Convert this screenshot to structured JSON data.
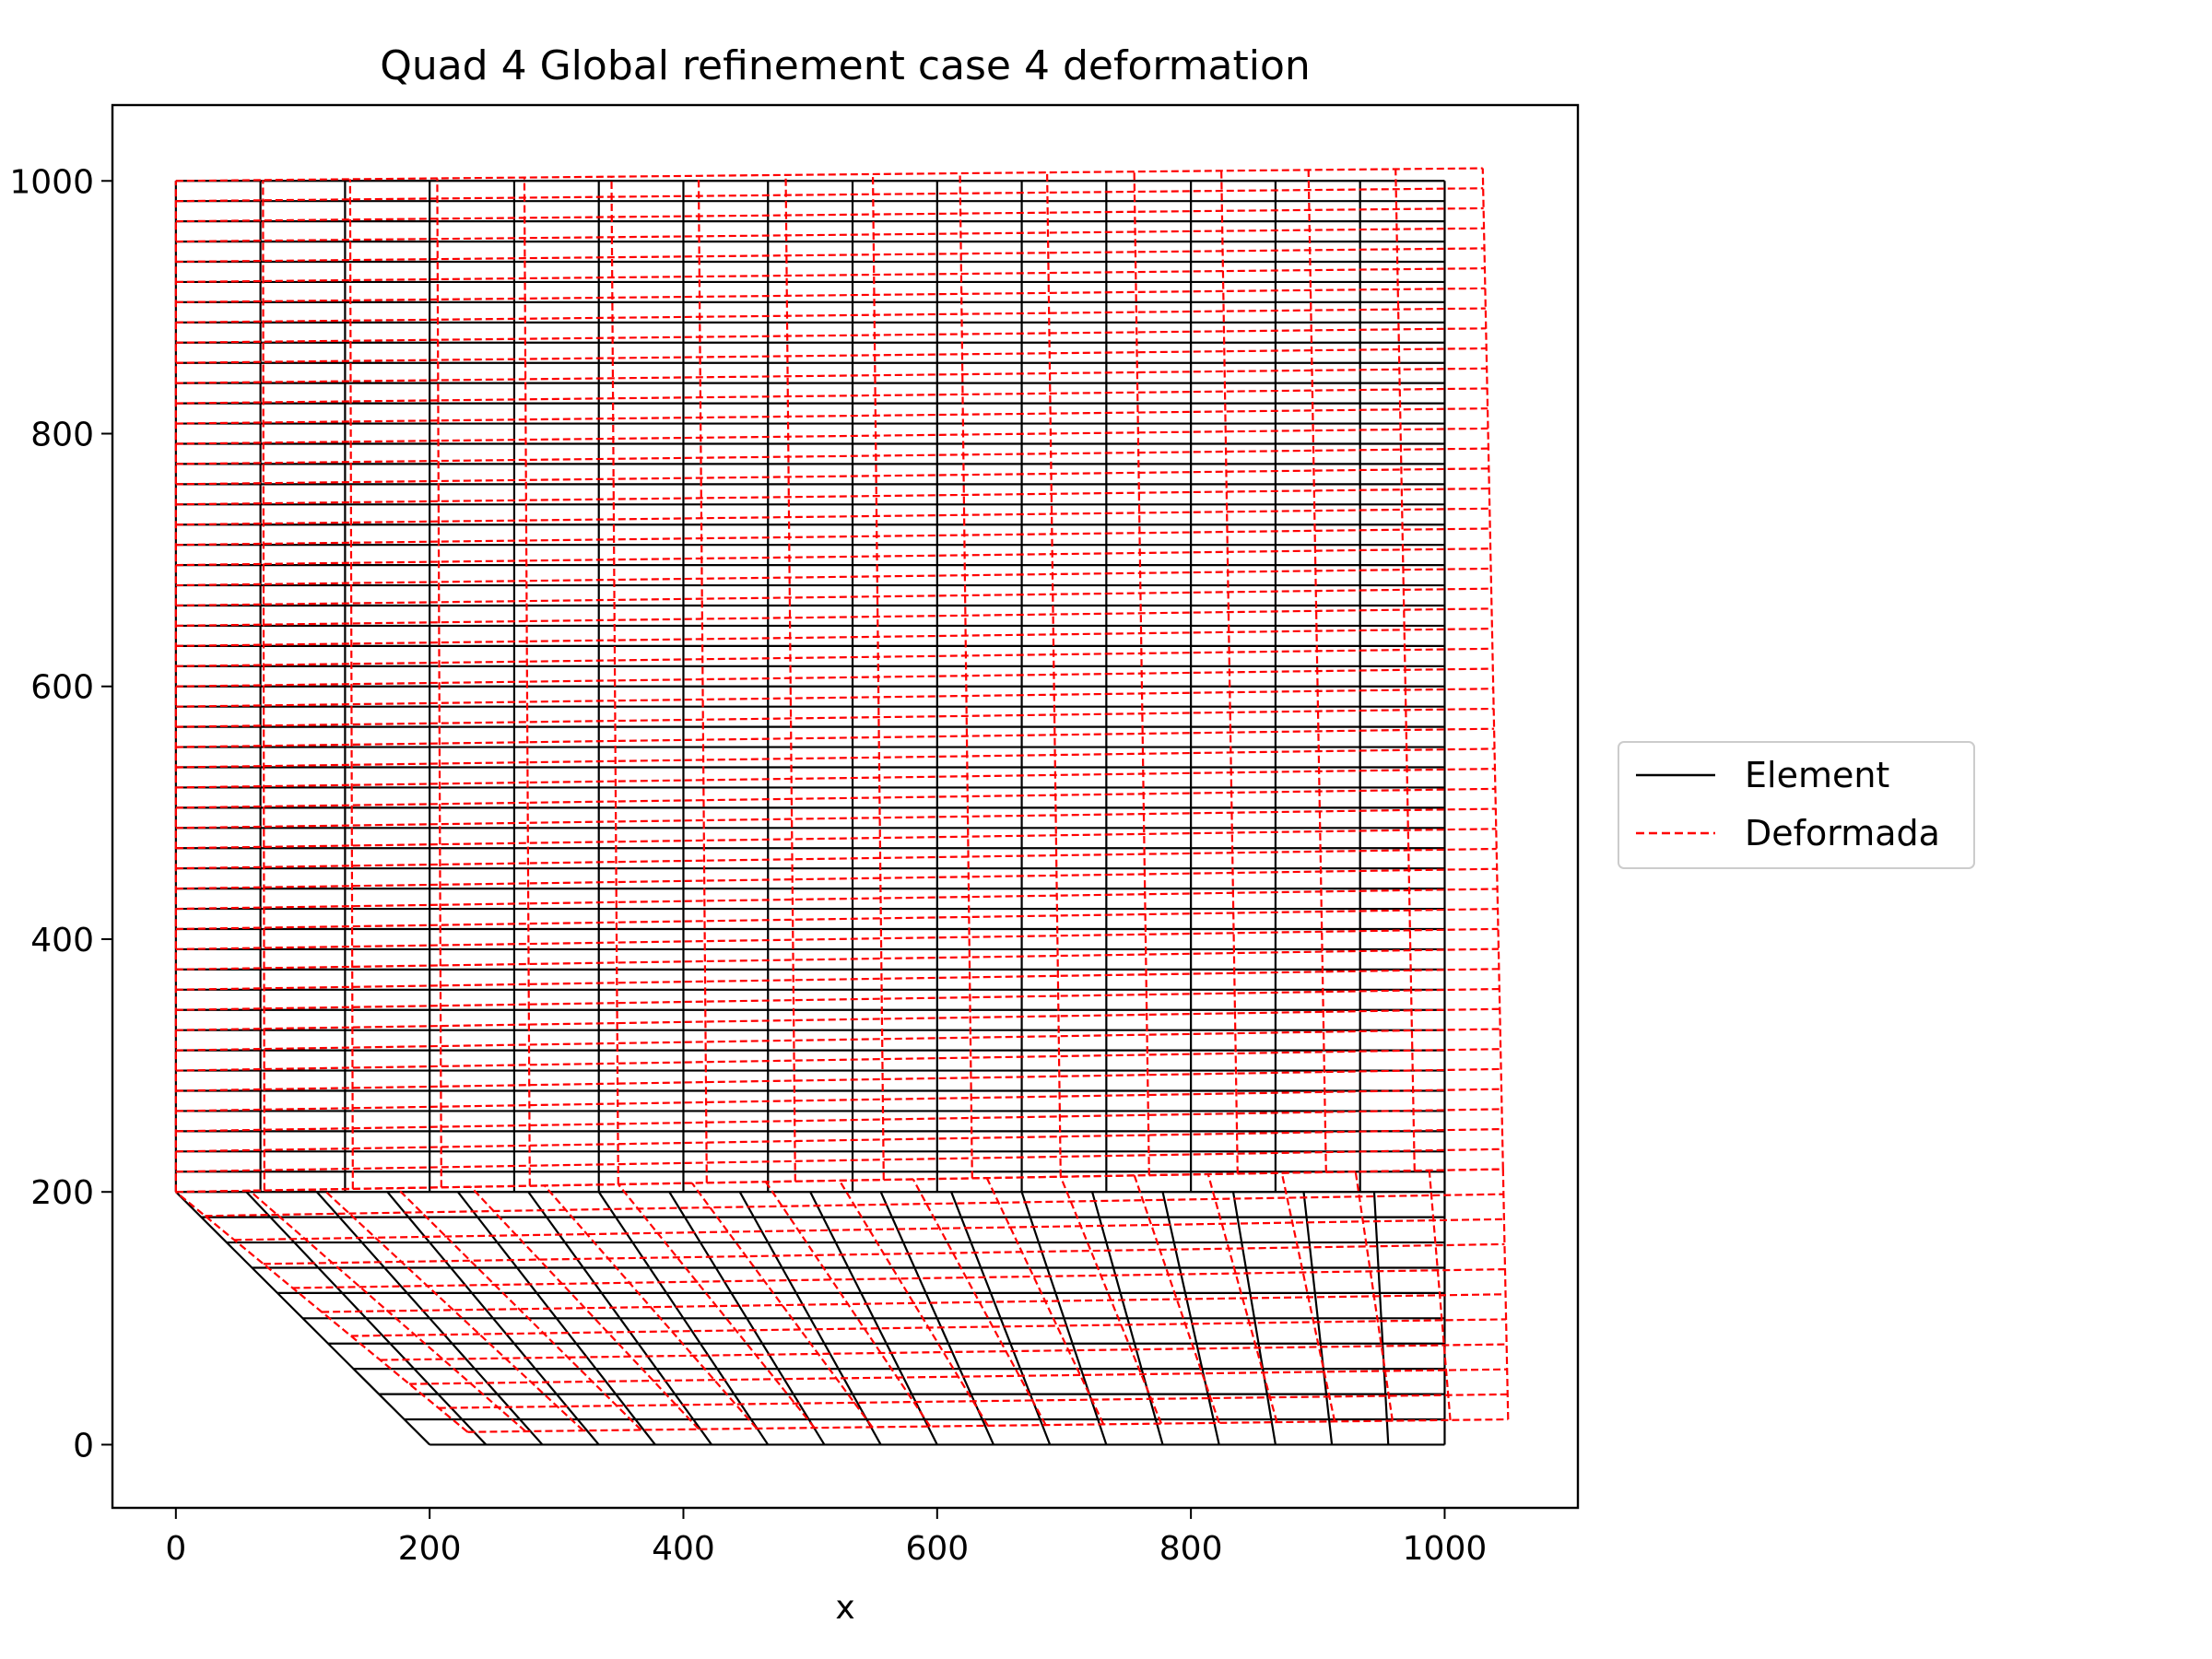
{
  "chart_data": {
    "type": "line",
    "title": "Quad 4 Global refinement case 4 deformation",
    "xlabel": "x",
    "ylabel": "",
    "xlim": [
      -50,
      1105
    ],
    "ylim": [
      -50,
      1060
    ],
    "xticks": [
      0,
      200,
      400,
      600,
      800,
      1000
    ],
    "yticks": [
      0,
      200,
      400,
      600,
      800,
      1000
    ],
    "grid": false,
    "legend": {
      "placement": "right-outside-center",
      "entries": [
        {
          "label": "Element",
          "color": "#000000",
          "style": "solid"
        },
        {
          "label": "Deformada",
          "color": "#ff0000",
          "style": "dashed"
        }
      ]
    },
    "series": [
      {
        "name": "Element",
        "color": "#000000",
        "style": "solid",
        "mesh": {
          "upper_region": {
            "x_range": [
              0,
              1000
            ],
            "y_range": [
              200,
              1000
            ],
            "columns": 15,
            "rows": 50
          },
          "lower_region": {
            "left_edge_from": [
              0,
              200
            ],
            "left_edge_to": [
              200,
              0
            ],
            "x_right": 1000,
            "y_range": [
              0,
              200
            ],
            "columns": 18,
            "rows": 10
          }
        }
      },
      {
        "name": "Deformada",
        "color": "#ff0000",
        "style": "dashed",
        "displacement": {
          "corner_top_right": [
            1030,
            1010
          ],
          "corner_bottom_right": [
            1050,
            20
          ],
          "corner_bottom_left": [
            230,
            10
          ]
        }
      }
    ]
  }
}
